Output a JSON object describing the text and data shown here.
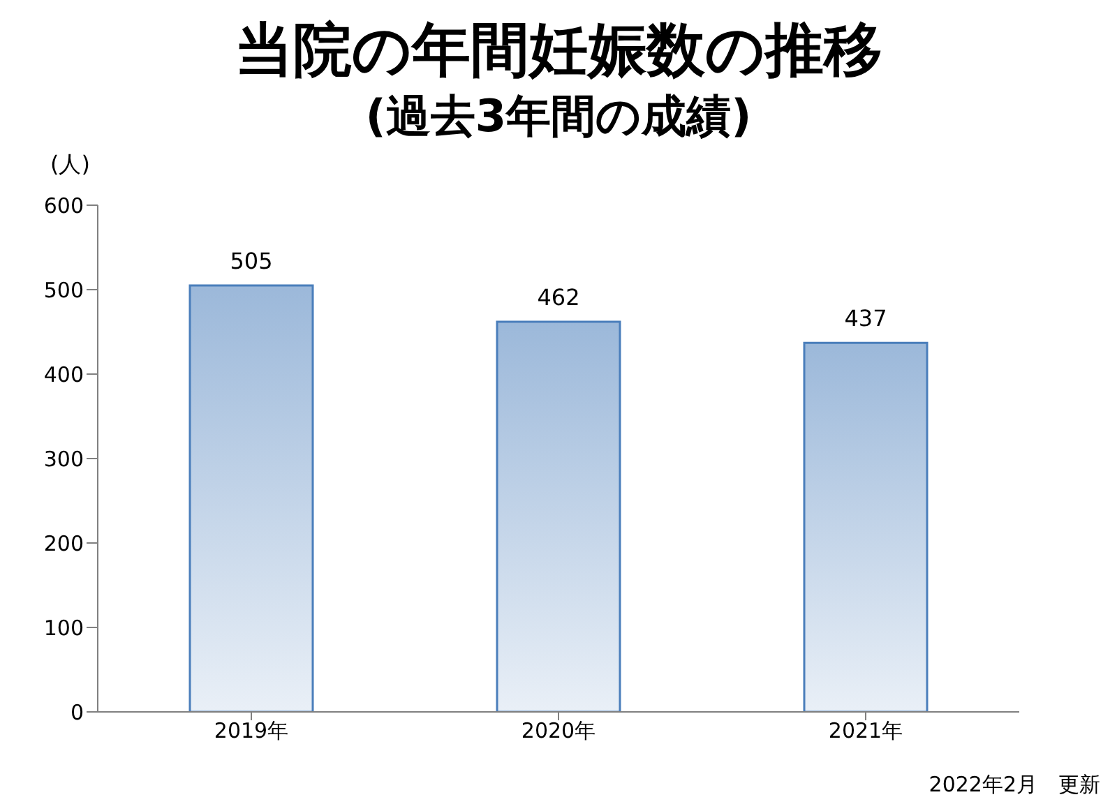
{
  "chart_data": {
    "type": "bar",
    "title": "当院の年間妊娠数の推移",
    "subtitle": "(過去3年間の成績)",
    "ylabel": "(人)",
    "categories": [
      "2019年",
      "2020年",
      "2021年"
    ],
    "values": [
      505,
      462,
      437
    ],
    "color": "#4a7ebb",
    "ylim": [
      0,
      600
    ],
    "yticks": [
      0,
      100,
      200,
      300,
      400,
      500,
      600
    ],
    "data_labels": true,
    "annotations": [
      "2022年2月　更新"
    ]
  }
}
